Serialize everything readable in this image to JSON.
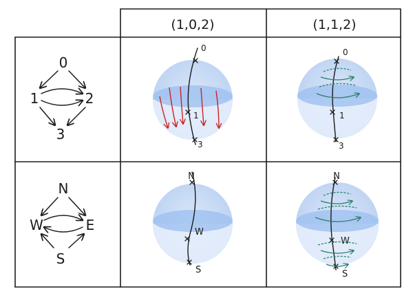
{
  "columns": [
    "(1,0,2)",
    "(1,1,2)"
  ],
  "rows": [
    {
      "quiver": {
        "nodes": [
          "0",
          "1",
          "2",
          "3"
        ]
      },
      "spheres": [
        {
          "labels": [
            "0",
            "1",
            "3"
          ],
          "flow": "red"
        },
        {
          "labels": [
            "0",
            "1",
            "3"
          ],
          "flow": "green"
        }
      ]
    },
    {
      "quiver": {
        "nodes": [
          "N",
          "W",
          "E",
          "S"
        ]
      },
      "spheres": [
        {
          "labels": [
            "N",
            "W",
            "S"
          ],
          "flow": "none"
        },
        {
          "labels": [
            "N",
            "W",
            "S"
          ],
          "flow": "green"
        }
      ]
    }
  ],
  "colors": {
    "ink": "#1b1b1b",
    "sphere_light": "#e8f0fb",
    "sphere_mid": "#c8daf6",
    "sphere_band": "#9ec0f0",
    "red_flow": "#cc2222",
    "green_flow": "#2a7f6a"
  }
}
